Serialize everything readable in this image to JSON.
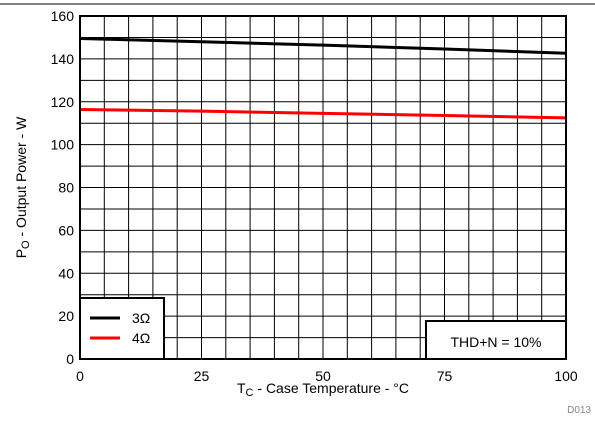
{
  "chart_data": {
    "type": "line",
    "title": "",
    "xlabel_main": "T",
    "xlabel_sub": "C",
    "xlabel_rest": " - Case Temperature - °C",
    "ylabel_main": "P",
    "ylabel_sub": "O",
    "ylabel_rest": " - Output Power - W",
    "xlim": [
      0,
      100
    ],
    "ylim": [
      0,
      160
    ],
    "x_ticks": [
      0,
      25,
      50,
      75,
      100
    ],
    "y_ticks": [
      0,
      20,
      40,
      60,
      80,
      100,
      120,
      140,
      160
    ],
    "x_grid_step": 5,
    "y_grid_step": 10,
    "grid": true,
    "legend_position": "bottom-left",
    "series": [
      {
        "name": "3Ω",
        "color": "#000000",
        "x": [
          0,
          25,
          50,
          75,
          100
        ],
        "y": [
          149.5,
          148.0,
          146.4,
          144.6,
          142.6
        ]
      },
      {
        "name": "4Ω",
        "color": "#ff0000",
        "x": [
          0,
          25,
          50,
          75,
          100
        ],
        "y": [
          116.4,
          115.6,
          114.6,
          113.6,
          112.5
        ]
      }
    ],
    "annotation": "THD+N = 10%",
    "figure_id": "D013"
  }
}
